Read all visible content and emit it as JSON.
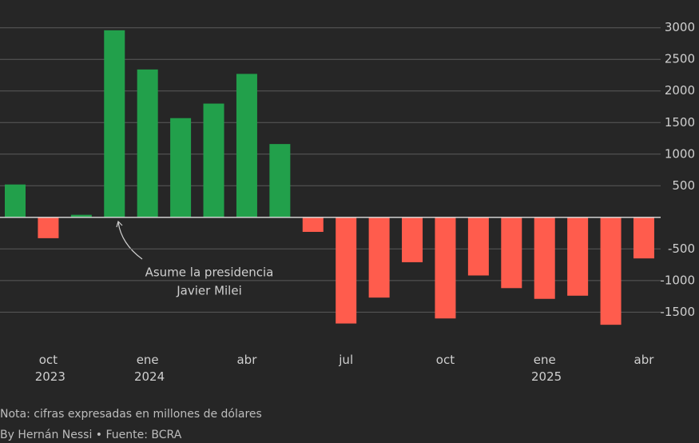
{
  "chart_data": {
    "type": "bar",
    "categories": [
      null,
      "oct 2023",
      null,
      null,
      "ene 2024",
      null,
      null,
      "abr",
      null,
      null,
      "jul",
      null,
      null,
      "oct",
      null,
      null,
      "ene 2025",
      null,
      null,
      "abr"
    ],
    "values": [
      520,
      -330,
      40,
      2960,
      2340,
      1570,
      1800,
      2270,
      1160,
      -230,
      -1680,
      -1270,
      -710,
      -1600,
      -920,
      -1120,
      -1290,
      -1240,
      -1700,
      -650
    ],
    "positive_color": "#22a04b",
    "negative_color": "#ff5c4d",
    "ylim": [
      -1850,
      3300
    ],
    "yticks": [
      3000,
      2500,
      2000,
      1500,
      1000,
      500,
      -500,
      -1000,
      -1500
    ],
    "grid": true,
    "annotation": [
      "Asume la presidencia",
      "Javier Milei"
    ],
    "note": "Nota: cifras expresadas en millones de dólares",
    "source": "By Hernán Nessi • Fuente: BCRA"
  }
}
